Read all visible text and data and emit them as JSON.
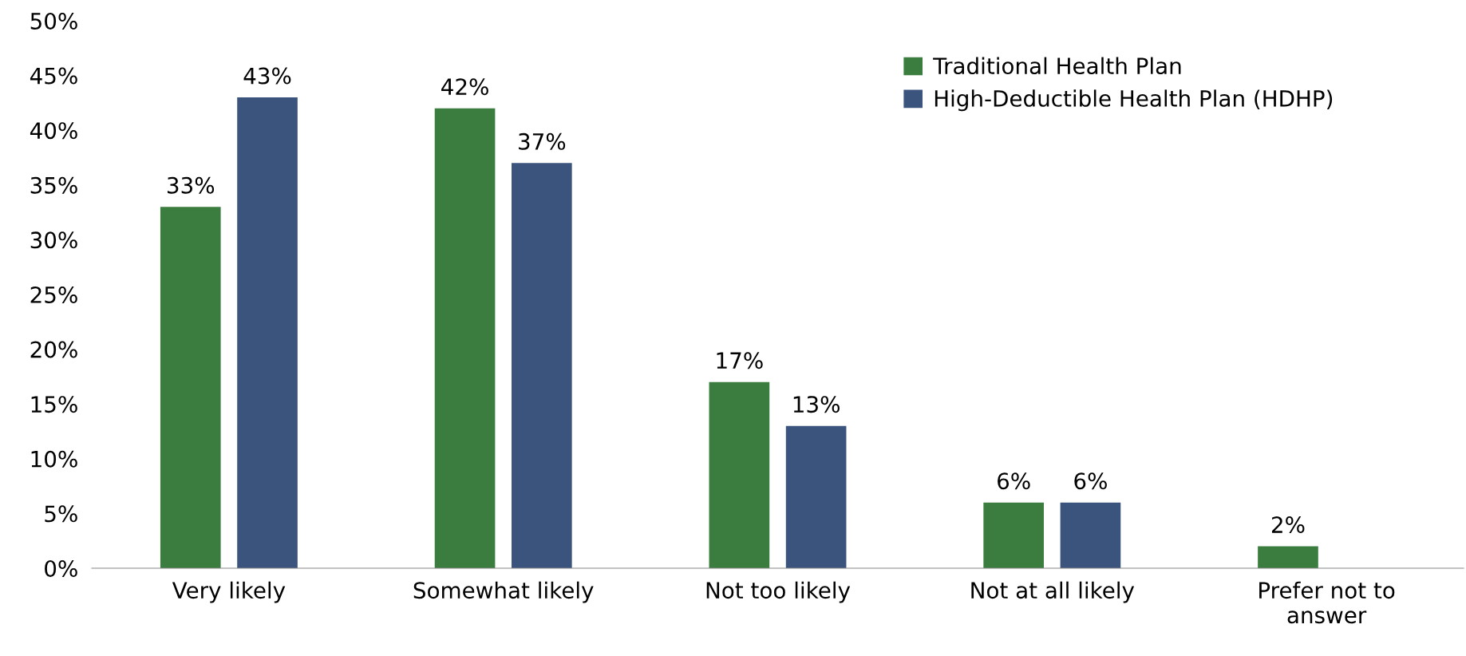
{
  "chart_data": {
    "type": "bar",
    "categories": [
      "Very likely",
      "Somewhat likely",
      "Not too likely",
      "Not at all likely",
      "Prefer not to\nanswer"
    ],
    "series": [
      {
        "name": "Traditional Health Plan",
        "color": "#3a7d3e",
        "values": [
          33,
          42,
          17,
          6,
          2
        ],
        "value_labels": [
          "33%",
          "42%",
          "17%",
          "6%",
          "2%"
        ]
      },
      {
        "name": "High-Deductible Health Plan (HDHP)",
        "color": "#3a547e",
        "values": [
          43,
          37,
          13,
          6,
          null
        ],
        "value_labels": [
          "43%",
          "37%",
          "13%",
          "6%",
          null
        ]
      }
    ],
    "ylim": [
      0,
      50
    ],
    "yticks": [
      {
        "value": 0,
        "label": "0%"
      },
      {
        "value": 5,
        "label": "5%"
      },
      {
        "value": 10,
        "label": "10%"
      },
      {
        "value": 15,
        "label": "15%"
      },
      {
        "value": 20,
        "label": "20%"
      },
      {
        "value": 25,
        "label": "25%"
      },
      {
        "value": 30,
        "label": "30%"
      },
      {
        "value": 35,
        "label": "35%"
      },
      {
        "value": 40,
        "label": "40%"
      },
      {
        "value": 45,
        "label": "45%"
      },
      {
        "value": 50,
        "label": "50%"
      }
    ],
    "grid": false,
    "legend": "top right"
  }
}
